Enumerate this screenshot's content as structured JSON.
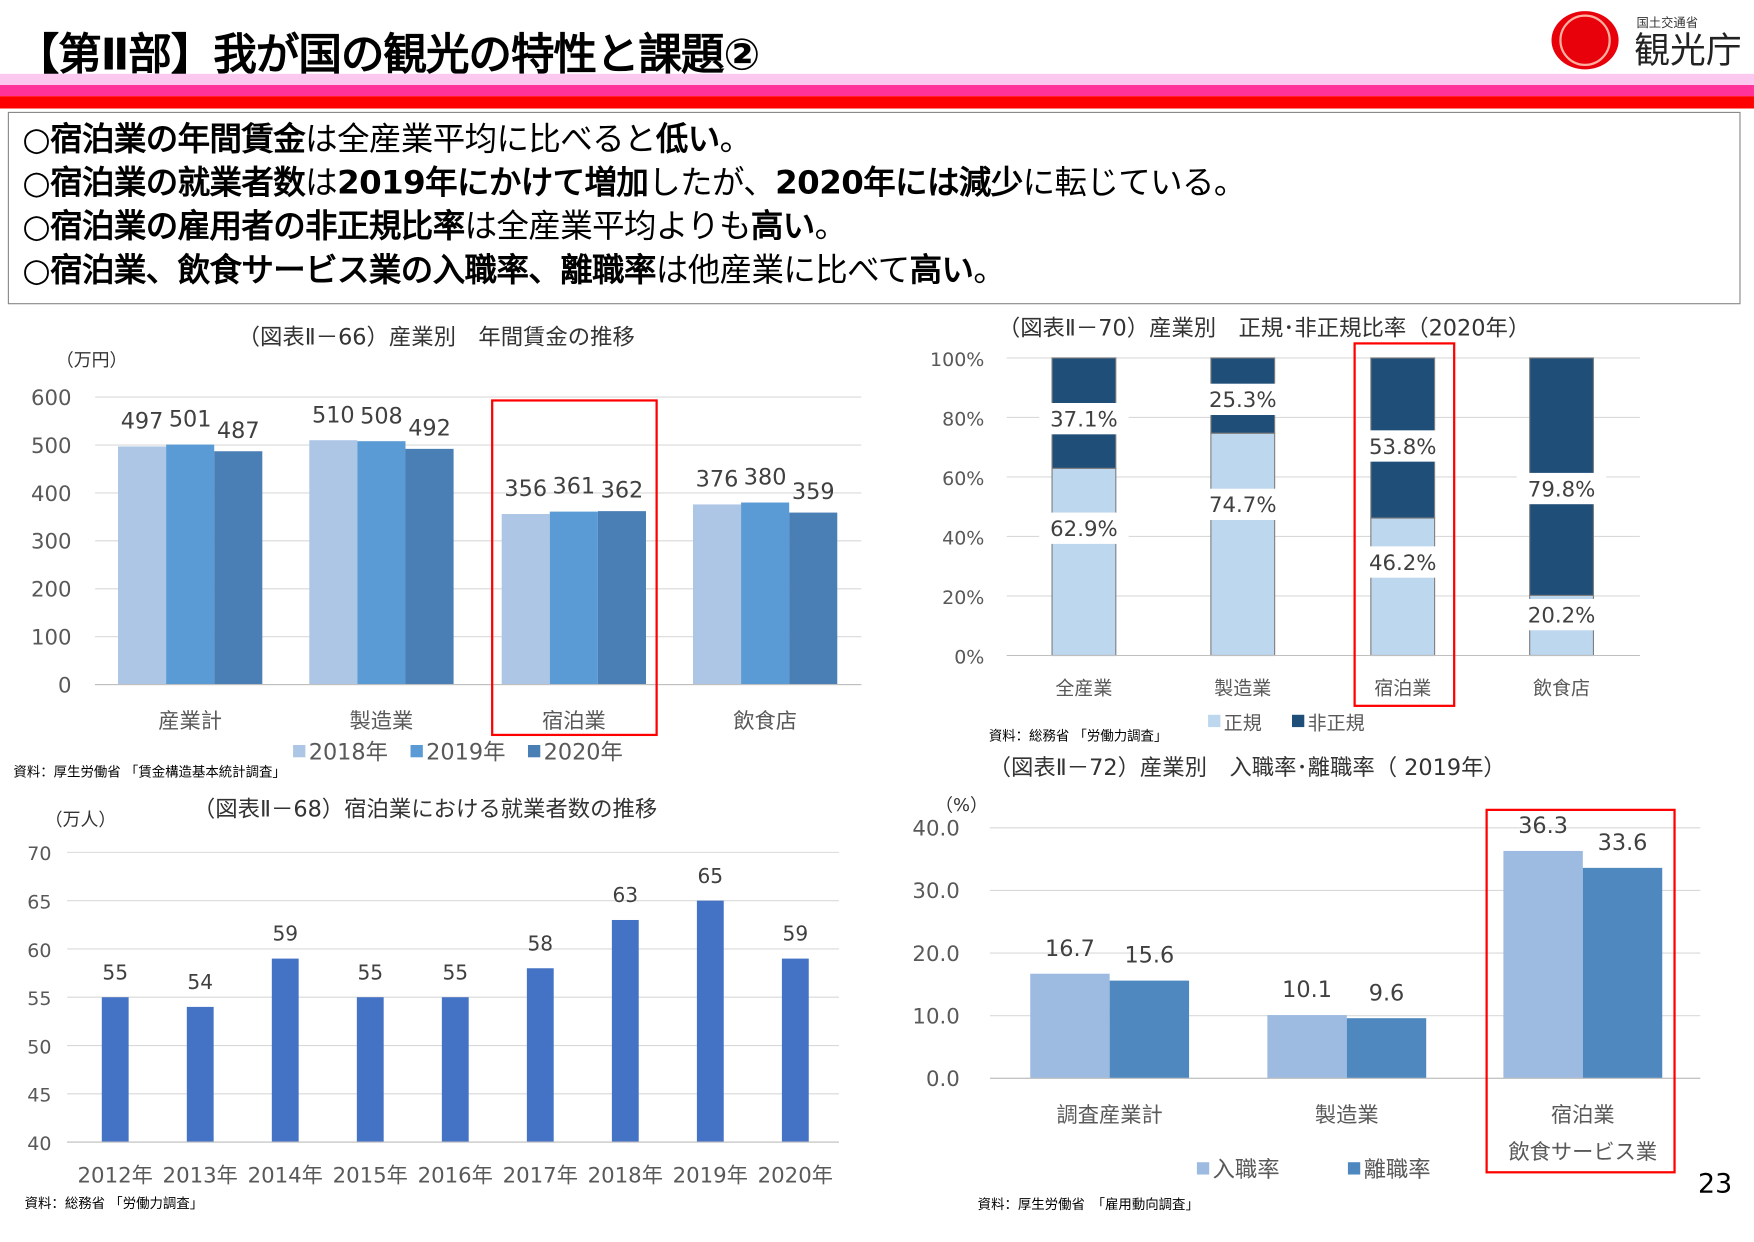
{
  "header": {
    "title": "【第Ⅱ部】我が国の観光の特性と課題②",
    "logo_text": "観光庁",
    "logo_subtext": "国土交通省",
    "colors": {
      "band1": "#fbc8f0",
      "band2": "#ff3399",
      "band3": "#ff0000",
      "logo_red": "#e8000b"
    }
  },
  "bullets": [
    [
      {
        "t": "○",
        "b": false
      },
      {
        "t": "宿泊業の年間賃金",
        "b": true
      },
      {
        "t": "は全産業平均に比べると",
        "b": false
      },
      {
        "t": "低い",
        "b": true
      },
      {
        "t": "。",
        "b": false
      }
    ],
    [
      {
        "t": "○",
        "b": false
      },
      {
        "t": "宿泊業の就業者数",
        "b": true
      },
      {
        "t": "は",
        "b": false
      },
      {
        "t": "2019年にかけて増加",
        "b": true
      },
      {
        "t": "したが、",
        "b": false
      },
      {
        "t": "2020年には減少",
        "b": true
      },
      {
        "t": "に転じている。",
        "b": false
      }
    ],
    [
      {
        "t": "○",
        "b": false
      },
      {
        "t": "宿泊業の雇用者の非正規比率",
        "b": true
      },
      {
        "t": "は全産業平均よりも",
        "b": false
      },
      {
        "t": "高い",
        "b": true
      },
      {
        "t": "。",
        "b": false
      }
    ],
    [
      {
        "t": "○",
        "b": false
      },
      {
        "t": "宿泊業、飲食サービス業の入職率、離職率",
        "b": true
      },
      {
        "t": "は他産業に比べて",
        "b": false
      },
      {
        "t": "高い",
        "b": true
      },
      {
        "t": "。",
        "b": false
      }
    ]
  ],
  "page_number": "23",
  "chart_data": [
    {
      "id": "c66",
      "type": "bar",
      "title": "（図表Ⅱ－66）産業別　年間賃金の推移",
      "ylabel": "（万円）",
      "source": "資料：厚生労働省 「賃金構造基本統計調査」",
      "categories": [
        "産業計",
        "製造業",
        "宿泊業",
        "飲食店"
      ],
      "ylim": [
        0,
        600
      ],
      "yticks": [
        0,
        100,
        200,
        300,
        400,
        500,
        600
      ],
      "grid": true,
      "legend": "bottom",
      "highlight": "宿泊業",
      "series": [
        {
          "name": "2018年",
          "color": "#adc6e5",
          "values": [
            497,
            510,
            356,
            376
          ]
        },
        {
          "name": "2019年",
          "color": "#5b9bd5",
          "values": [
            501,
            508,
            361,
            380
          ]
        },
        {
          "name": "2020年",
          "color": "#4a7fb5",
          "values": [
            487,
            492,
            362,
            359
          ]
        }
      ]
    },
    {
      "id": "c70",
      "type": "bar",
      "stacked": true,
      "title": "（図表Ⅱ－70）産業別　正規･非正規比率（2020年）",
      "source": "資料：総務省 「労働力調査」",
      "categories": [
        "全産業",
        "製造業",
        "宿泊業",
        "飲食店"
      ],
      "ylim": [
        0,
        100
      ],
      "yticks": [
        "0%",
        "20%",
        "40%",
        "60%",
        "80%",
        "100%"
      ],
      "grid": true,
      "legend": "bottom",
      "highlight": "宿泊業",
      "series": [
        {
          "name": "正規",
          "color": "#bdd7ee",
          "values": [
            62.9,
            74.7,
            46.2,
            20.2
          ],
          "labels": [
            "62.9%",
            "74.7%",
            "46.2%",
            "20.2%"
          ]
        },
        {
          "name": "非正規",
          "color": "#1f4e79",
          "values": [
            37.1,
            25.3,
            53.8,
            79.8
          ],
          "labels": [
            "37.1%",
            "25.3%",
            "53.8%",
            "79.8%"
          ]
        }
      ]
    },
    {
      "id": "c68",
      "type": "bar",
      "title": "（図表Ⅱ－68）宿泊業における就業者数の推移",
      "ylabel": "（万人）",
      "source": "資料：総務省 「労働力調査」",
      "categories": [
        "2012年",
        "2013年",
        "2014年",
        "2015年",
        "2016年",
        "2017年",
        "2018年",
        "2019年",
        "2020年"
      ],
      "ylim": [
        40,
        70
      ],
      "yticks": [
        40,
        45,
        50,
        55,
        60,
        65,
        70
      ],
      "grid": true,
      "series": [
        {
          "color": "#4472c4",
          "values": [
            55,
            54,
            59,
            55,
            55,
            58,
            63,
            65,
            59
          ]
        }
      ]
    },
    {
      "id": "c72",
      "type": "bar",
      "title": "（図表Ⅱ－72）産業別　入職率･離職率（ 2019年）",
      "ylabel": "（%）",
      "source": "資料：厚生労働省　「雇用動向調査」",
      "categories": [
        "調査産業計",
        "製造業",
        "宿泊業\n飲食サービス業"
      ],
      "ylim": [
        0,
        40
      ],
      "yticks": [
        "0.0",
        "10.0",
        "20.0",
        "30.0",
        "40.0"
      ],
      "grid": true,
      "legend": "bottom",
      "highlight": "宿泊業\n飲食サービス業",
      "series": [
        {
          "name": "入職率",
          "color": "#9dbbe0",
          "values": [
            16.7,
            10.1,
            36.3
          ],
          "labels": [
            "16.7",
            "10.1",
            "36.3"
          ]
        },
        {
          "name": "離職率",
          "color": "#4f88bf",
          "values": [
            15.6,
            9.6,
            33.6
          ],
          "labels": [
            "15.6",
            "9.6",
            "33.6"
          ]
        }
      ]
    }
  ]
}
